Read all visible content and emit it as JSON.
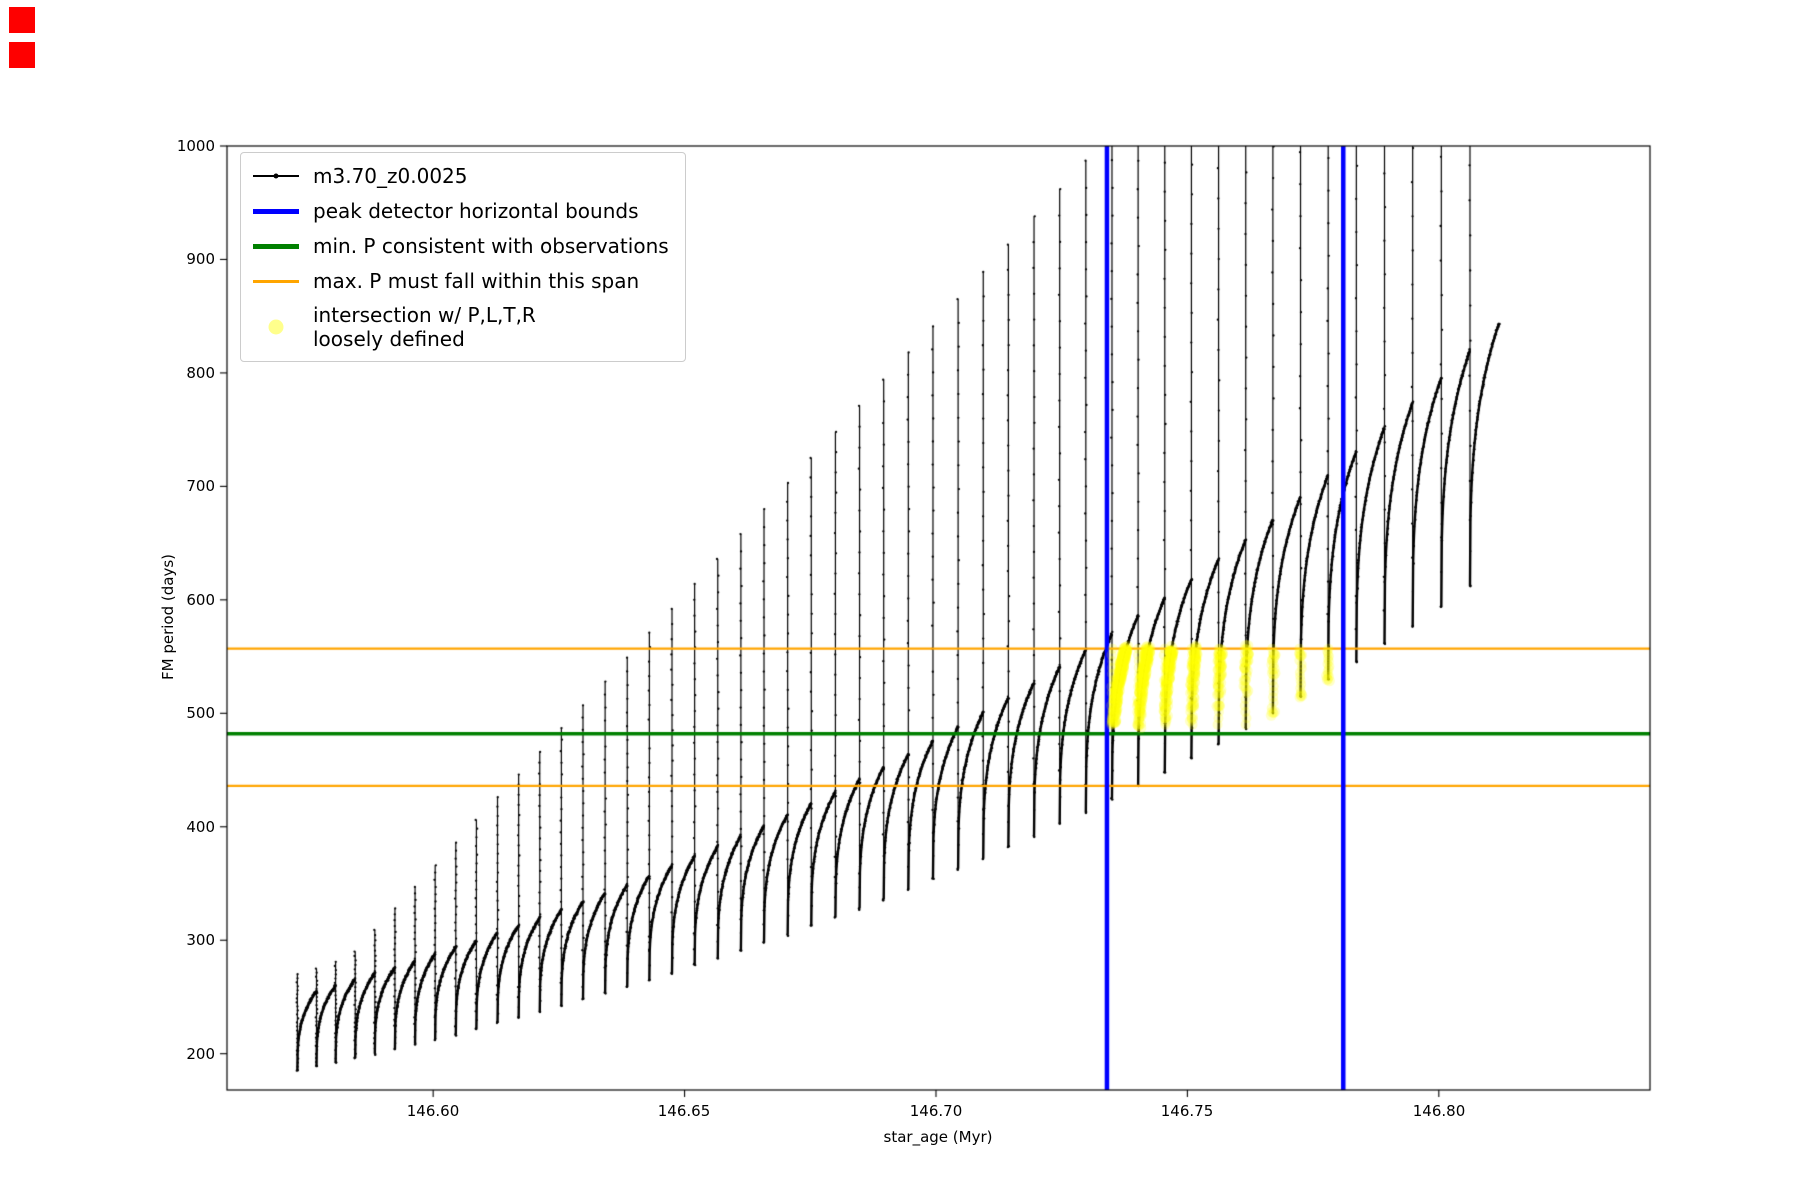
{
  "artifacts": {
    "red_square_color": "#fe0000"
  },
  "chart_data": {
    "type": "line",
    "title": "",
    "xlabel": "star_age (Myr)",
    "ylabel": "FM period (days)",
    "xlim": [
      146.559,
      146.842
    ],
    "ylim": [
      168,
      1000
    ],
    "grid": false,
    "xticks": [
      "146.60",
      "146.65",
      "146.70",
      "146.75",
      "146.80"
    ],
    "xtick_values": [
      146.6,
      146.65,
      146.7,
      146.75,
      146.8
    ],
    "yticks": [
      "200",
      "300",
      "400",
      "500",
      "600",
      "700",
      "800",
      "900",
      "1000"
    ],
    "ytick_values": [
      200,
      300,
      400,
      500,
      600,
      700,
      800,
      900,
      1000
    ],
    "legend": {
      "position": "upper left",
      "entries": [
        {
          "label": "m3.70_z0.0025",
          "color": "#000000",
          "style": "line-dot"
        },
        {
          "label": "peak detector horizontal bounds",
          "color": "#0000ff",
          "style": "thick-line"
        },
        {
          "label": "min. P consistent with observations",
          "color": "#008000",
          "style": "thick-line"
        },
        {
          "label": "max. P must fall within this span",
          "color": "#ffa500",
          "style": "line"
        },
        {
          "label": "intersection w/ P,L,T,R\nloosely defined",
          "color": "#ffff00",
          "style": "dot"
        }
      ]
    },
    "series": [
      {
        "name": "m3.70_z0.0025",
        "color": "#000000",
        "type": "thermal-pulse-train",
        "pulse_format": [
          "x_Myr",
          "period_min",
          "arc_max",
          "spike_peak"
        ],
        "pulses": [
          [
            146.573,
            185,
            255,
            234
          ],
          [
            146.5768,
            189,
            260,
            253
          ],
          [
            146.5806,
            192,
            266,
            271
          ],
          [
            146.5845,
            196,
            271,
            290
          ],
          [
            146.5884,
            200,
            276,
            309
          ],
          [
            146.5924,
            204,
            282,
            328
          ],
          [
            146.5964,
            209,
            288,
            347
          ],
          [
            146.6004,
            213,
            294,
            366
          ],
          [
            146.6045,
            217,
            300,
            386
          ],
          [
            146.6086,
            222,
            307,
            406
          ],
          [
            146.6128,
            227,
            313,
            426
          ],
          [
            146.617,
            232,
            320,
            446
          ],
          [
            146.6212,
            237,
            327,
            466
          ],
          [
            146.6255,
            242,
            334,
            487
          ],
          [
            146.6298,
            248,
            342,
            507
          ],
          [
            146.6342,
            253,
            349,
            528
          ],
          [
            146.6386,
            259,
            357,
            549
          ],
          [
            146.643,
            265,
            366,
            571
          ],
          [
            146.6475,
            271,
            374,
            592
          ],
          [
            146.652,
            278,
            383,
            614
          ],
          [
            146.6566,
            284,
            392,
            636
          ],
          [
            146.6612,
            291,
            401,
            658
          ],
          [
            146.6658,
            298,
            411,
            680
          ],
          [
            146.6705,
            305,
            421,
            703
          ],
          [
            146.6752,
            313,
            431,
            725
          ],
          [
            146.68,
            320,
            442,
            748
          ],
          [
            146.6848,
            328,
            453,
            771
          ],
          [
            146.6896,
            336,
            464,
            794
          ],
          [
            146.6945,
            345,
            476,
            818
          ],
          [
            146.6994,
            354,
            488,
            841
          ],
          [
            146.7044,
            363,
            501,
            865
          ],
          [
            146.7094,
            372,
            514,
            889
          ],
          [
            146.7144,
            382,
            527,
            913
          ],
          [
            146.7195,
            392,
            541,
            938
          ],
          [
            146.7246,
            403,
            556,
            962
          ],
          [
            146.7298,
            413,
            570,
            987
          ],
          [
            146.735,
            425,
            586,
            1012
          ],
          [
            146.7402,
            436,
            602,
            1037
          ],
          [
            146.7455,
            448,
            618,
            1062
          ],
          [
            146.7508,
            461,
            636,
            1088
          ],
          [
            146.7562,
            473,
            653,
            1114
          ],
          [
            146.7616,
            487,
            671,
            1140
          ],
          [
            146.767,
            500,
            691,
            1166
          ],
          [
            146.7725,
            515,
            710,
            1192
          ],
          [
            146.778,
            530,
            731,
            1219
          ],
          [
            146.7836,
            545,
            752,
            1245
          ],
          [
            146.7892,
            561,
            774,
            1272
          ],
          [
            146.7948,
            577,
            796,
            1299
          ],
          [
            146.8005,
            594,
            820,
            1326
          ],
          [
            146.8062,
            612,
            844,
            1354
          ]
        ]
      }
    ],
    "vlines": {
      "name": "peak detector horizontal bounds",
      "color": "#0000ff",
      "x": [
        146.734,
        146.781
      ],
      "linewidth": 4.5
    },
    "hlines": [
      {
        "name": "min. P consistent with observations",
        "color": "#008000",
        "y": [
          482
        ],
        "linewidth": 3.5
      },
      {
        "name": "max. P must fall within this span",
        "color": "#ffa500",
        "y": [
          436,
          557
        ],
        "linewidth": 2.2
      }
    ],
    "highlight": {
      "name": "intersection w/ P,L,T,R loosely defined",
      "color": "#ffff00",
      "alpha": 0.22,
      "x_range": [
        146.734,
        146.781
      ],
      "y_range": [
        490,
        557
      ]
    }
  }
}
